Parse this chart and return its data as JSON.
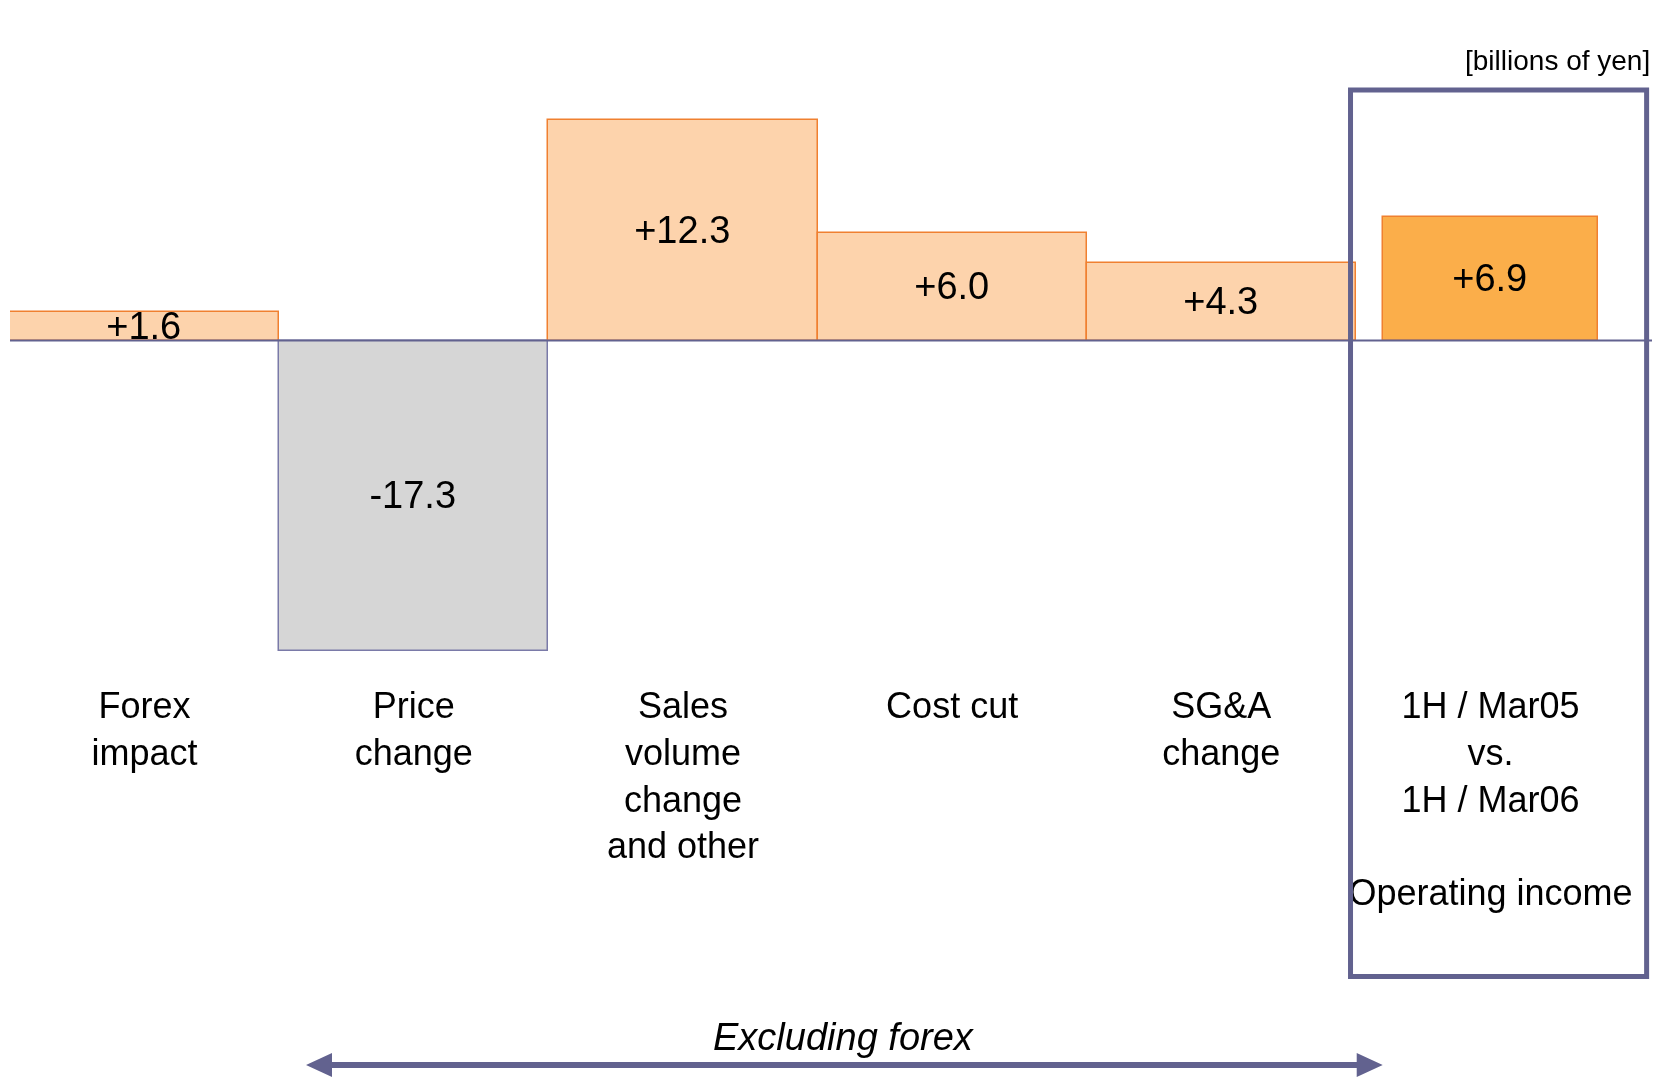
{
  "chart_data": {
    "type": "bar",
    "categories": [
      "Forex\nimpact",
      "Price\nchange",
      "Sales\nvolume\nchange\nand other",
      "Cost cut",
      "SG&A\nchange",
      "1H / Mar05\nvs.\n1H / Mar06\n\nOperating income"
    ],
    "values": [
      1.6,
      -17.3,
      12.3,
      6.0,
      4.3,
      6.9
    ],
    "value_labels": [
      "+1.6",
      "-17.3",
      "+12.3",
      "+6.0",
      "+4.3",
      "+6.9"
    ],
    "colors": [
      "#fdd3ac",
      "#d6d6d6",
      "#fdd3ac",
      "#fdd3ac",
      "#fdd3ac",
      "#fbae4a"
    ],
    "tick_labels": "x",
    "ref_lines": [
      {
        "axis": "y",
        "value": 0,
        "color": "#62628f"
      }
    ],
    "annotations": [
      "[billions of yen]",
      "Excluding forex"
    ]
  }
}
